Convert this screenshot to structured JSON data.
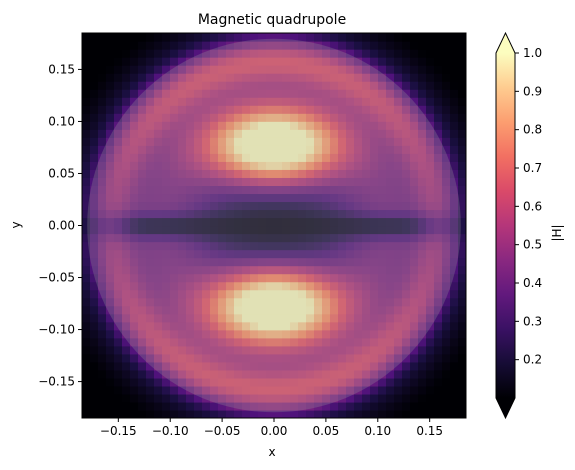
{
  "chart_data": {
    "type": "heatmap",
    "title": "Magnetic quadrupole",
    "xlabel": "x",
    "ylabel": "y",
    "xlim": [
      -0.185,
      0.185
    ],
    "ylim": [
      -0.185,
      0.185
    ],
    "xticks": [
      "−0.15",
      "−0.10",
      "−0.05",
      "0.00",
      "0.05",
      "0.10",
      "0.15"
    ],
    "xtick_values": [
      -0.15,
      -0.1,
      -0.05,
      0.0,
      0.05,
      0.1,
      0.15
    ],
    "yticks": [
      "−0.15",
      "−0.10",
      "−0.05",
      "0.00",
      "0.05",
      "0.10",
      "0.15"
    ],
    "ytick_values": [
      -0.15,
      -0.1,
      -0.05,
      0.0,
      0.05,
      0.1,
      0.15
    ],
    "colormap": "magma",
    "field_magnitude": "|H|",
    "colorbar": {
      "label": "|H|",
      "range": [
        0.1,
        1.0
      ],
      "ticks": [
        "0.2",
        "0.3",
        "0.4",
        "0.5",
        "0.6",
        "0.7",
        "0.8",
        "0.9",
        "1.0"
      ],
      "tick_values": [
        0.2,
        0.3,
        0.4,
        0.5,
        0.6,
        0.7,
        0.8,
        0.9,
        1.0
      ],
      "extend": "both"
    },
    "lobes": [
      {
        "x": 0.0,
        "y": 0.075,
        "peak": 1.0
      },
      {
        "x": 0.0,
        "y": -0.075,
        "peak": 1.0
      }
    ],
    "overlay_disk": {
      "center": [
        0.0,
        0.0
      ],
      "radius": 0.18,
      "color": "#9a9a9a",
      "opacity": 0.28
    },
    "grid": false
  }
}
